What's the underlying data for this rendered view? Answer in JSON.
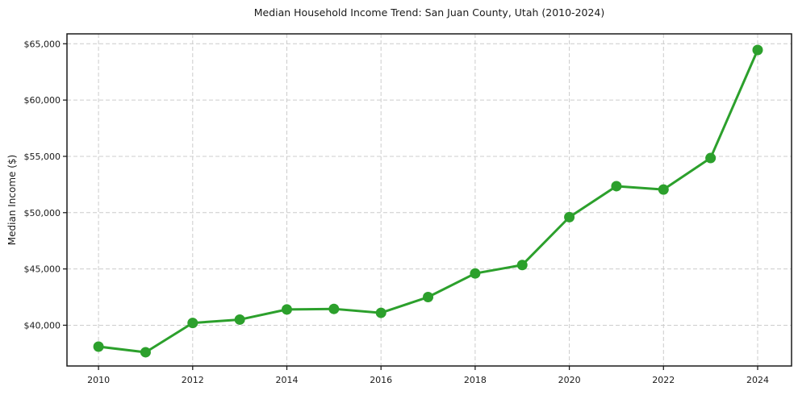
{
  "figure": {
    "background": "#ffffff"
  },
  "chart_data": {
    "type": "line",
    "title": "Median Household Income Trend: San Juan County, Utah (2010-2024)",
    "xlabel": "",
    "ylabel": "Median Income ($)",
    "series": [
      {
        "name": "Median Household Income",
        "x": [
          2010,
          2011,
          2012,
          2013,
          2014,
          2015,
          2016,
          2017,
          2018,
          2019,
          2020,
          2021,
          2022,
          2023,
          2024
        ],
        "y": [
          38100,
          37600,
          40200,
          40500,
          41400,
          41450,
          41100,
          42500,
          44600,
          45350,
          49600,
          52350,
          52050,
          54850,
          64450
        ],
        "color": "#2ca02c",
        "marker": "circle",
        "marker_diameter": 13,
        "line_width": 3
      }
    ],
    "xlim": [
      2009.33,
      2024.72
    ],
    "ylim": [
      36380,
      65880
    ],
    "x_ticks": [
      2010,
      2012,
      2014,
      2016,
      2018,
      2020,
      2022,
      2024
    ],
    "x_tick_labels": [
      "2010",
      "2012",
      "2014",
      "2016",
      "2018",
      "2020",
      "2022",
      "2024"
    ],
    "y_ticks": [
      40000,
      45000,
      50000,
      55000,
      60000,
      65000
    ],
    "y_tick_labels": [
      "$40,000",
      "$45,000",
      "$50,000",
      "$55,000",
      "$60,000",
      "$65,000"
    ],
    "grid": true,
    "grid_style": "dashed",
    "grid_color": "#cccccc",
    "grid_dash": [
      5,
      3
    ],
    "legend": false,
    "axis_color": "#1a1a1a",
    "text_color": "#1a1a1a",
    "tick_font_size": 11,
    "title_font_size": 12.5
  }
}
